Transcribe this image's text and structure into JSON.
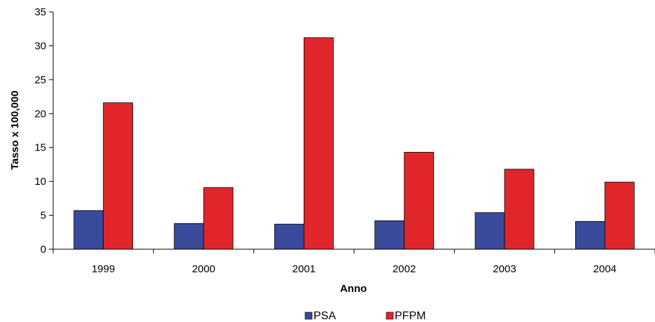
{
  "chart_data": {
    "type": "bar",
    "title": "",
    "xlabel": "Anno",
    "ylabel": "Tasso x 100,000",
    "categories": [
      "1999",
      "2000",
      "2001",
      "2002",
      "2003",
      "2004"
    ],
    "series": [
      {
        "name": "PSA",
        "color": "#3a4a9a",
        "values": [
          5.7,
          3.8,
          3.7,
          4.2,
          5.4,
          4.1
        ]
      },
      {
        "name": "PFPM",
        "color": "#e0262b",
        "values": [
          21.6,
          9.1,
          31.2,
          14.3,
          11.8,
          9.9
        ]
      }
    ],
    "ylim": [
      0,
      35
    ],
    "yticks": [
      "0",
      "5",
      "10",
      "15",
      "20",
      "25",
      "30",
      "35"
    ],
    "grid": false,
    "legend_position": "bottom-center"
  }
}
